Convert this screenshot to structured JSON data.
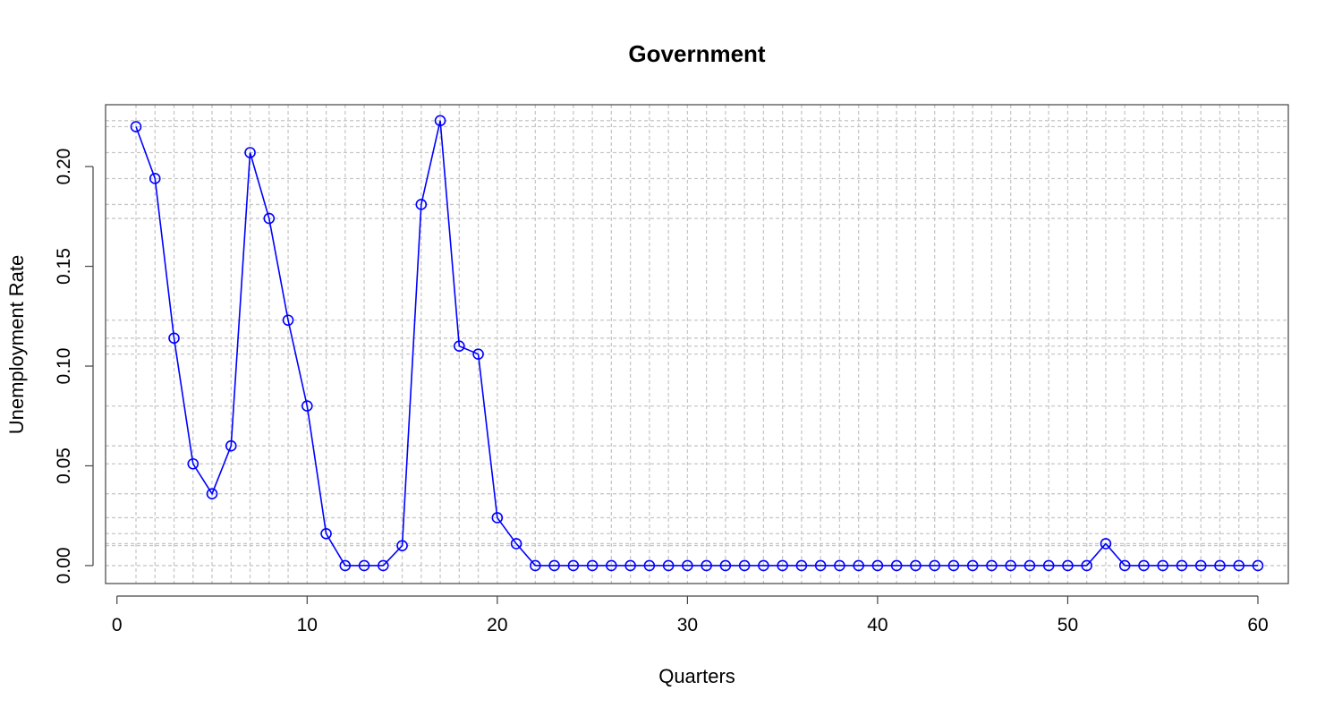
{
  "chart_data": {
    "type": "line",
    "title": "Government",
    "xlabel": "Quarters",
    "ylabel": "Unemployment Rate",
    "xlim": [
      -0.6,
      61.6
    ],
    "ylim": [
      -0.009,
      0.231
    ],
    "x_ticks": [
      0,
      10,
      20,
      30,
      40,
      50,
      60
    ],
    "x_tick_labels": [
      "0",
      "10",
      "20",
      "30",
      "40",
      "50",
      "60"
    ],
    "y_ticks": [
      0.0,
      0.05,
      0.1,
      0.15,
      0.2
    ],
    "y_tick_labels": [
      "0.00",
      "0.05",
      "0.10",
      "0.15",
      "0.20"
    ],
    "grid": true,
    "series": [
      {
        "color": "#0000ff",
        "marker": "open-circle",
        "x": [
          1,
          2,
          3,
          4,
          5,
          6,
          7,
          8,
          9,
          10,
          11,
          12,
          13,
          14,
          15,
          16,
          17,
          18,
          19,
          20,
          21,
          22,
          23,
          24,
          25,
          26,
          27,
          28,
          29,
          30,
          31,
          32,
          33,
          34,
          35,
          36,
          37,
          38,
          39,
          40,
          41,
          42,
          43,
          44,
          45,
          46,
          47,
          48,
          49,
          50,
          51,
          52,
          53,
          54,
          55,
          56,
          57,
          58,
          59,
          60
        ],
        "values": [
          0.22,
          0.194,
          0.114,
          0.051,
          0.036,
          0.06,
          0.207,
          0.174,
          0.123,
          0.08,
          0.016,
          0,
          0,
          0,
          0.01,
          0.181,
          0.223,
          0.11,
          0.106,
          0.024,
          0.011,
          0,
          0,
          0,
          0,
          0,
          0,
          0,
          0,
          0,
          0,
          0,
          0,
          0,
          0,
          0,
          0,
          0,
          0,
          0,
          0,
          0,
          0,
          0,
          0,
          0,
          0,
          0,
          0,
          0,
          0,
          0.011,
          0,
          0,
          0,
          0,
          0,
          0,
          0,
          0
        ]
      }
    ]
  }
}
